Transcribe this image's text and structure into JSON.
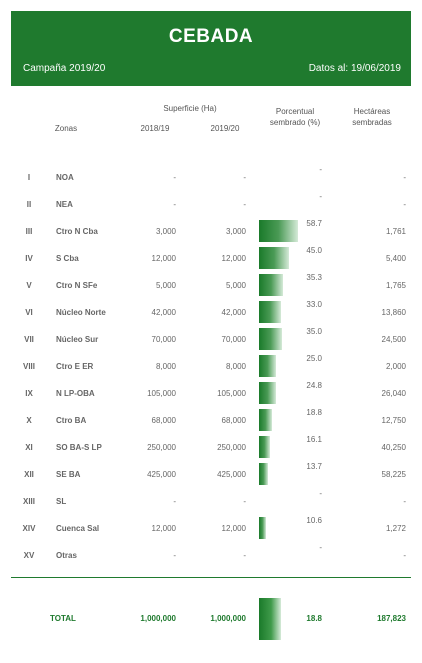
{
  "header": {
    "title": "CEBADA",
    "campaign": "Campaña 2019/20",
    "date": "Datos al: 19/06/2019"
  },
  "columns": {
    "zonas": "Zonas",
    "superficie": "Superficie (Ha)",
    "y1819": "2018/19",
    "y1920": "2019/20",
    "porcentual": "Porcentual",
    "sembrado": "sembrado (%)",
    "hectareas": "Hectáreas",
    "sembradas": "sembradas"
  },
  "rows": [
    {
      "roman": "I",
      "zone": "NOA",
      "s1819": "-",
      "s1920": "-",
      "pct": "-",
      "pct_value": 0,
      "ha": "-"
    },
    {
      "roman": "II",
      "zone": "NEA",
      "s1819": "-",
      "s1920": "-",
      "pct": "-",
      "pct_value": 0,
      "ha": "-"
    },
    {
      "roman": "III",
      "zone": "Ctro N Cba",
      "s1819": "3,000",
      "s1920": "3,000",
      "pct": "58.7",
      "pct_value": 58.7,
      "ha": "1,761"
    },
    {
      "roman": "IV",
      "zone": "S Cba",
      "s1819": "12,000",
      "s1920": "12,000",
      "pct": "45.0",
      "pct_value": 45.0,
      "ha": "5,400"
    },
    {
      "roman": "V",
      "zone": "Ctro N SFe",
      "s1819": "5,000",
      "s1920": "5,000",
      "pct": "35.3",
      "pct_value": 35.3,
      "ha": "1,765"
    },
    {
      "roman": "VI",
      "zone": "Núcleo Norte",
      "s1819": "42,000",
      "s1920": "42,000",
      "pct": "33.0",
      "pct_value": 33.0,
      "ha": "13,860"
    },
    {
      "roman": "VII",
      "zone": "Núcleo Sur",
      "s1819": "70,000",
      "s1920": "70,000",
      "pct": "35.0",
      "pct_value": 35.0,
      "ha": "24,500"
    },
    {
      "roman": "VIII",
      "zone": "Ctro E ER",
      "s1819": "8,000",
      "s1920": "8,000",
      "pct": "25.0",
      "pct_value": 25.0,
      "ha": "2,000"
    },
    {
      "roman": "IX",
      "zone": "N LP-OBA",
      "s1819": "105,000",
      "s1920": "105,000",
      "pct": "24.8",
      "pct_value": 24.8,
      "ha": "26,040"
    },
    {
      "roman": "X",
      "zone": "Ctro BA",
      "s1819": "68,000",
      "s1920": "68,000",
      "pct": "18.8",
      "pct_value": 18.8,
      "ha": "12,750"
    },
    {
      "roman": "XI",
      "zone": "SO BA-S LP",
      "s1819": "250,000",
      "s1920": "250,000",
      "pct": "16.1",
      "pct_value": 16.1,
      "ha": "40,250"
    },
    {
      "roman": "XII",
      "zone": "SE BA",
      "s1819": "425,000",
      "s1920": "425,000",
      "pct": "13.7",
      "pct_value": 13.7,
      "ha": "58,225"
    },
    {
      "roman": "XIII",
      "zone": "SL",
      "s1819": "-",
      "s1920": "-",
      "pct": "-",
      "pct_value": 0,
      "ha": "-"
    },
    {
      "roman": "XIV",
      "zone": "Cuenca Sal",
      "s1819": "12,000",
      "s1920": "12,000",
      "pct": "10.6",
      "pct_value": 10.6,
      "ha": "1,272"
    },
    {
      "roman": "XV",
      "zone": "Otras",
      "s1819": "-",
      "s1920": "-",
      "pct": "-",
      "pct_value": 0,
      "ha": "-"
    }
  ],
  "total": {
    "label": "TOTAL",
    "s1819": "1,000,000",
    "s1920": "1,000,000",
    "pct": "18.8",
    "pct_value": 18.8,
    "ha": "187,823"
  },
  "colors": {
    "accent": "#1f7a2e"
  }
}
